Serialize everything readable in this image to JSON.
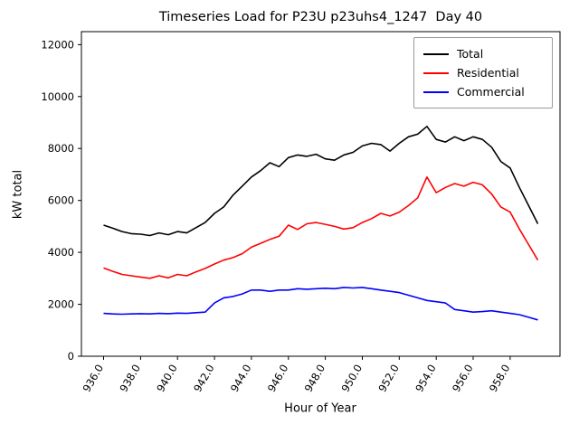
{
  "chart_data": {
    "type": "line",
    "title": "Timeseries Load for P23U p23uhs4_1247  Day 40",
    "xlabel": "Hour of Year",
    "ylabel": "kW total",
    "xlim": [
      934.8,
      960.7
    ],
    "ylim": [
      0,
      12500
    ],
    "grid": false,
    "legend_position": "upper right",
    "x_tick_values": [
      936,
      938,
      940,
      942,
      944,
      946,
      948,
      950,
      952,
      954,
      956,
      958
    ],
    "x_tick_labels": [
      "936.0",
      "938.0",
      "940.0",
      "942.0",
      "944.0",
      "946.0",
      "948.0",
      "950.0",
      "952.0",
      "954.0",
      "956.0",
      "958.0"
    ],
    "y_tick_values": [
      0,
      2000,
      4000,
      6000,
      8000,
      10000,
      12000
    ],
    "y_tick_labels": [
      "0",
      "2000",
      "4000",
      "6000",
      "8000",
      "10000",
      "12000"
    ],
    "x": [
      936.0,
      936.5,
      937.0,
      937.5,
      938.0,
      938.5,
      939.0,
      939.5,
      940.0,
      940.5,
      941.0,
      941.5,
      942.0,
      942.5,
      943.0,
      943.5,
      944.0,
      944.5,
      945.0,
      945.5,
      946.0,
      946.5,
      947.0,
      947.5,
      948.0,
      948.5,
      949.0,
      949.5,
      950.0,
      950.5,
      951.0,
      951.5,
      952.0,
      952.5,
      953.0,
      953.5,
      954.0,
      954.5,
      955.0,
      955.5,
      956.0,
      956.5,
      957.0,
      957.5,
      958.0,
      958.5,
      959.0,
      959.5
    ],
    "series": [
      {
        "name": "Total",
        "color": "#000000",
        "values": [
          5050,
          4930,
          4800,
          4720,
          4700,
          4650,
          4750,
          4680,
          4800,
          4750,
          4950,
          5150,
          5500,
          5750,
          6200,
          6550,
          6900,
          7150,
          7450,
          7300,
          7650,
          7750,
          7700,
          7780,
          7600,
          7550,
          7750,
          7850,
          8100,
          8200,
          8150,
          7900,
          8200,
          8450,
          8550,
          8850,
          8350,
          8250,
          8450,
          8300,
          8450,
          8350,
          8050,
          7500,
          7250,
          6500,
          5800,
          5100
        ]
      },
      {
        "name": "Residential",
        "color": "#ff0000",
        "values": [
          3400,
          3270,
          3150,
          3100,
          3050,
          3000,
          3100,
          3020,
          3150,
          3100,
          3250,
          3380,
          3550,
          3700,
          3800,
          3950,
          4200,
          4350,
          4500,
          4620,
          5050,
          4880,
          5100,
          5150,
          5080,
          5000,
          4900,
          4950,
          5150,
          5300,
          5500,
          5400,
          5550,
          5800,
          6100,
          6900,
          6300,
          6500,
          6650,
          6550,
          6700,
          6600,
          6250,
          5750,
          5550,
          4900,
          4300,
          3700
        ]
      },
      {
        "name": "Commercial",
        "color": "#0000ff",
        "values": [
          1650,
          1630,
          1620,
          1630,
          1640,
          1630,
          1650,
          1640,
          1660,
          1650,
          1680,
          1700,
          2050,
          2250,
          2300,
          2400,
          2550,
          2550,
          2500,
          2550,
          2550,
          2600,
          2580,
          2600,
          2620,
          2600,
          2650,
          2630,
          2650,
          2600,
          2550,
          2500,
          2450,
          2350,
          2250,
          2150,
          2100,
          2050,
          1800,
          1750,
          1700,
          1720,
          1750,
          1700,
          1650,
          1600,
          1500,
          1400
        ]
      }
    ]
  }
}
